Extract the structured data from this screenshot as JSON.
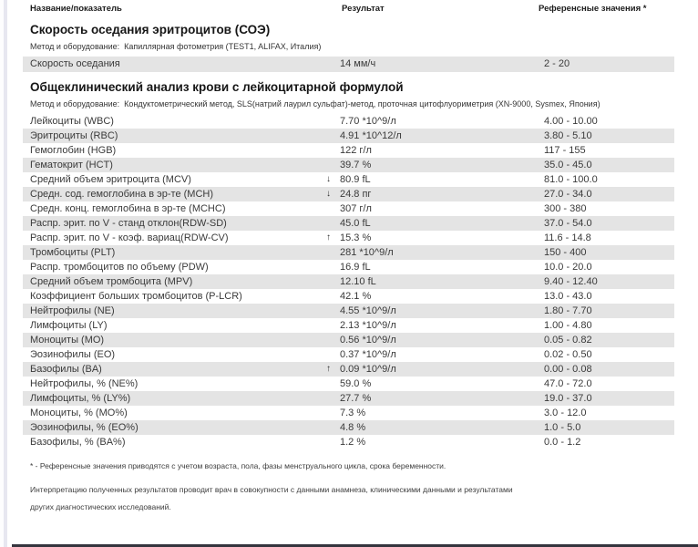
{
  "icons": {
    "flag_low": "↓",
    "flag_high": "↑"
  },
  "columns": {
    "name": "Название/показатель",
    "result": "Результат",
    "reference": "Референсные значения *"
  },
  "sections": [
    {
      "title": "Скорость оседания эритроцитов (СОЭ)",
      "method": "Метод и оборудование:  Капиллярная фотометрия (TEST1, ALIFAX, Италия)",
      "rows": [
        {
          "name": "Скорость оседания",
          "flag": null,
          "result": "14 мм/ч",
          "reference": "2 - 20"
        }
      ]
    },
    {
      "title": "Общеклинический анализ крови с лейкоцитарной формулой",
      "method": "Метод и оборудование:  Кондуктометрический метод, SLS(натрий лаурил сульфат)-метод, проточная цитофлуориметрия (XN-9000, Sysmex, Япония)",
      "rows": [
        {
          "name": "Лейкоциты (WBC)",
          "flag": null,
          "result": "7.70 *10^9/л",
          "reference": "4.00 - 10.00"
        },
        {
          "name": "Эритроциты (RBC)",
          "flag": null,
          "result": "4.91 *10^12/л",
          "reference": "3.80 - 5.10"
        },
        {
          "name": "Гемоглобин (HGB)",
          "flag": null,
          "result": "122 г/л",
          "reference": "117 - 155"
        },
        {
          "name": "Гематокрит (HCT)",
          "flag": null,
          "result": "39.7 %",
          "reference": "35.0 - 45.0"
        },
        {
          "name": "Средний объем эритроцита (MCV)",
          "flag": "low",
          "result": "80.9 fL",
          "reference": "81.0 - 100.0"
        },
        {
          "name": "Средн. сод. гемоглобина в эр-те (MCH)",
          "flag": "low",
          "result": "24.8 пг",
          "reference": "27.0 - 34.0"
        },
        {
          "name": "Средн. конц. гемоглобина в эр-те (MCHC)",
          "flag": null,
          "result": "307 г/л",
          "reference": "300 - 380"
        },
        {
          "name": "Распр. эрит. по V - станд отклон(RDW-SD)",
          "flag": null,
          "result": "45.0 fL",
          "reference": "37.0 - 54.0"
        },
        {
          "name": "Распр. эрит. по V - коэф. вариац(RDW-CV)",
          "flag": "high",
          "result": "15.3 %",
          "reference": "11.6 - 14.8"
        },
        {
          "name": "Тромбоциты (PLT)",
          "flag": null,
          "result": "281 *10^9/л",
          "reference": "150 - 400"
        },
        {
          "name": "Распр. тромбоцитов по объему (PDW)",
          "flag": null,
          "result": "16.9 fL",
          "reference": "10.0 - 20.0"
        },
        {
          "name": "Средний объем тромбоцита (MPV)",
          "flag": null,
          "result": "12.10 fL",
          "reference": "9.40 - 12.40"
        },
        {
          "name": "Коэффициент больших тромбоцитов (P-LCR)",
          "flag": null,
          "result": "42.1 %",
          "reference": "13.0 - 43.0"
        },
        {
          "name": "Нейтрофилы (NE)",
          "flag": null,
          "result": "4.55 *10^9/л",
          "reference": "1.80 - 7.70"
        },
        {
          "name": "Лимфоциты (LY)",
          "flag": null,
          "result": "2.13 *10^9/л",
          "reference": "1.00 - 4.80"
        },
        {
          "name": "Моноциты (MO)",
          "flag": null,
          "result": "0.56 *10^9/л",
          "reference": "0.05 - 0.82"
        },
        {
          "name": "Эозинофилы (EO)",
          "flag": null,
          "result": "0.37 *10^9/л",
          "reference": "0.02 - 0.50"
        },
        {
          "name": "Базофилы (BA)",
          "flag": "high",
          "result": "0.09 *10^9/л",
          "reference": "0.00 - 0.08"
        },
        {
          "name": "Нейтрофилы, % (NE%)",
          "flag": null,
          "result": "59.0 %",
          "reference": "47.0 - 72.0"
        },
        {
          "name": "Лимфоциты, % (LY%)",
          "flag": null,
          "result": "27.7 %",
          "reference": "19.0 - 37.0"
        },
        {
          "name": "Моноциты, % (MO%)",
          "flag": null,
          "result": "7.3 %",
          "reference": "3.0 - 12.0"
        },
        {
          "name": "Эозинофилы, % (EO%)",
          "flag": null,
          "result": "4.8 %",
          "reference": "1.0 - 5.0"
        },
        {
          "name": "Базофилы, % (BA%)",
          "flag": null,
          "result": "1.2 %",
          "reference": "0.0 - 1.2"
        }
      ]
    }
  ],
  "footnotes": [
    "* - Референсные значения приводятся с учетом возраста, пола, фазы менструального цикла, срока беременности.",
    "Интерпретацию полученных результатов проводит врач в совокупности с данными анамнеза, клиническими данными и результатами других диагностических исследований."
  ]
}
